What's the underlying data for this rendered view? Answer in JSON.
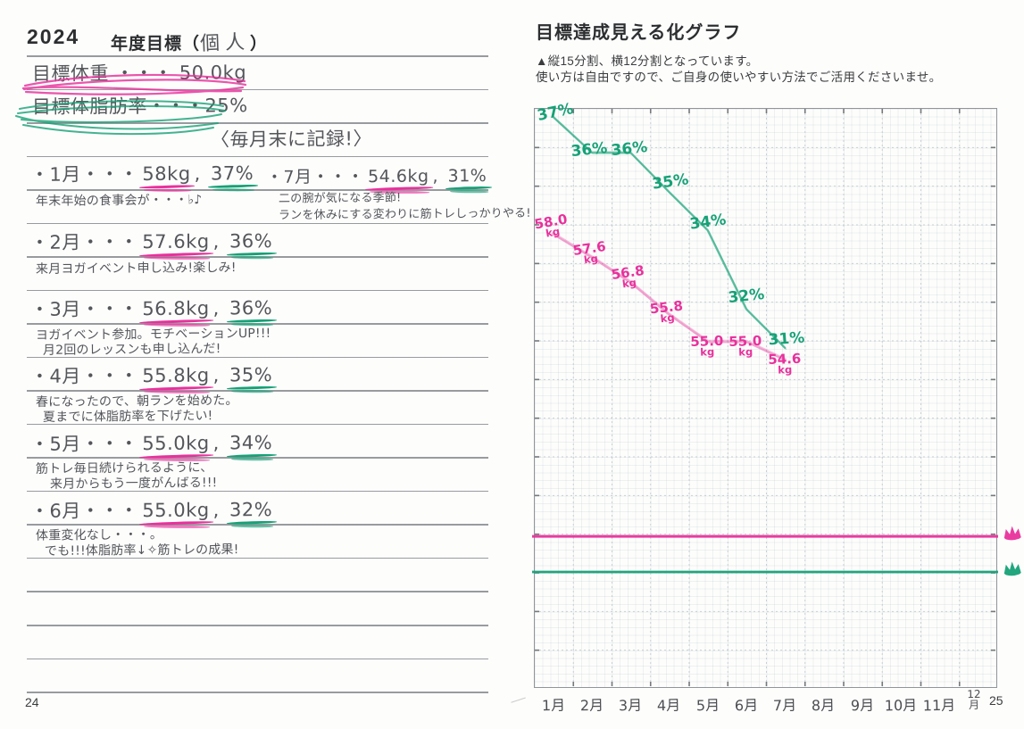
{
  "left_page": {
    "year": "2024",
    "title_prefix": "年度目標（",
    "title_fill": "個人",
    "title_suffix": "）",
    "goal_weight": "目標体重 ・・・ 50.0kg",
    "goal_fat": "目標体脂肪率・・・25%",
    "record_note": "〈毎月末に記録!〉",
    "entry_separator": ", ",
    "entries": [
      {
        "heading_month": "・1月・・・",
        "weight": "58kg",
        "fat": "37%",
        "notes": [
          "年末年始の食事会が・・・♭♪"
        ]
      },
      {
        "heading_month": "・2月・・・",
        "weight": "57.6kg",
        "fat": "36%",
        "notes": [
          "来月ヨガイベント申し込み!楽しみ!"
        ]
      },
      {
        "heading_month": "・3月・・・",
        "weight": "56.8kg",
        "fat": "36%",
        "notes": [
          "ヨガイベント参加。モチベーションUP!!!",
          "月2回のレッスンも申し込んだ!"
        ]
      },
      {
        "heading_month": "・4月・・・",
        "weight": "55.8kg",
        "fat": "35%",
        "notes": [
          "春になったので、朝ランを始めた。",
          "夏までに体脂肪率を下げたい!"
        ]
      },
      {
        "heading_month": "・5月・・・",
        "weight": "55.0kg",
        "fat": "34%",
        "notes": [
          "筋トレ毎日続けられるように、",
          "来月からもう一度がんばる!!!"
        ]
      },
      {
        "heading_month": "・6月・・・",
        "weight": "55.0kg",
        "fat": "32%",
        "notes": [
          "体重変化なし・・・。",
          "でも!!!体脂肪率↓✧筋トレの成果!"
        ]
      },
      {
        "heading_month": "・7月・・・",
        "weight": "54.6kg",
        "fat": "31%",
        "notes": [
          "二の腕が気になる季節!",
          "ランを休みにする変わりに筋トレしっかりやる!"
        ]
      }
    ],
    "page_number": "24"
  },
  "right_page": {
    "title": "目標達成見える化グラフ",
    "subtitle_line1": "▲縦15分割、横12分割となっています。",
    "subtitle_line2": "使い方は自由ですので、ご自身の使いやすい方法でご活用くださいませ。",
    "page_number": "25"
  },
  "colors": {
    "pink": "#e8319c",
    "green": "#16a176",
    "ink": "#54565a",
    "print": "#2c2e30",
    "rule": "#8d9093",
    "grid_line": "#c3ccd1",
    "grid_border": "#8f9599"
  },
  "chart_data": {
    "type": "line",
    "title": "目標達成見える化グラフ",
    "grid": {
      "cols": 12,
      "rows": 15
    },
    "x_axis": {
      "labels": [
        "1月",
        "2月",
        "3月",
        "4月",
        "5月",
        "6月",
        "7月",
        "8月",
        "9月",
        "10月",
        "11月",
        "12月"
      ],
      "months_plotted": 7
    },
    "series": [
      {
        "name": "体脂肪率",
        "unit": "%",
        "color_key": "green",
        "values": [
          37,
          36,
          36,
          35,
          34,
          32,
          31
        ],
        "point_labels": [
          "37%",
          "36%",
          "36%",
          "35%",
          "34%",
          "32%",
          "31%"
        ],
        "plot_rows": [
          0.23,
          1.15,
          1.15,
          2.17,
          3.16,
          5.2,
          6.2
        ]
      },
      {
        "name": "体重",
        "unit": "kg",
        "color_key": "pink",
        "values": [
          58.0,
          57.6,
          56.8,
          55.8,
          55.0,
          55.0,
          54.6
        ],
        "point_labels": [
          [
            "58.0",
            "kg"
          ],
          [
            "57.6",
            "kg"
          ],
          [
            "56.8",
            "kg"
          ],
          [
            "55.8",
            "kg"
          ],
          [
            "55.0",
            "kg"
          ],
          [
            "55.0",
            "kg"
          ],
          [
            "54.6",
            "kg"
          ]
        ],
        "plot_rows": [
          3.25,
          3.85,
          4.5,
          5.33,
          6.03,
          6.03,
          6.5
        ]
      }
    ],
    "goal_lines": [
      {
        "series": "体重",
        "value": "50.0kg",
        "color_key": "pink",
        "row": 11.08,
        "marker": "crown"
      },
      {
        "series": "体脂肪率",
        "value": "25%",
        "color_key": "green",
        "row": 12.0,
        "marker": "crown"
      }
    ],
    "legend": "none",
    "grid_visible": true
  }
}
